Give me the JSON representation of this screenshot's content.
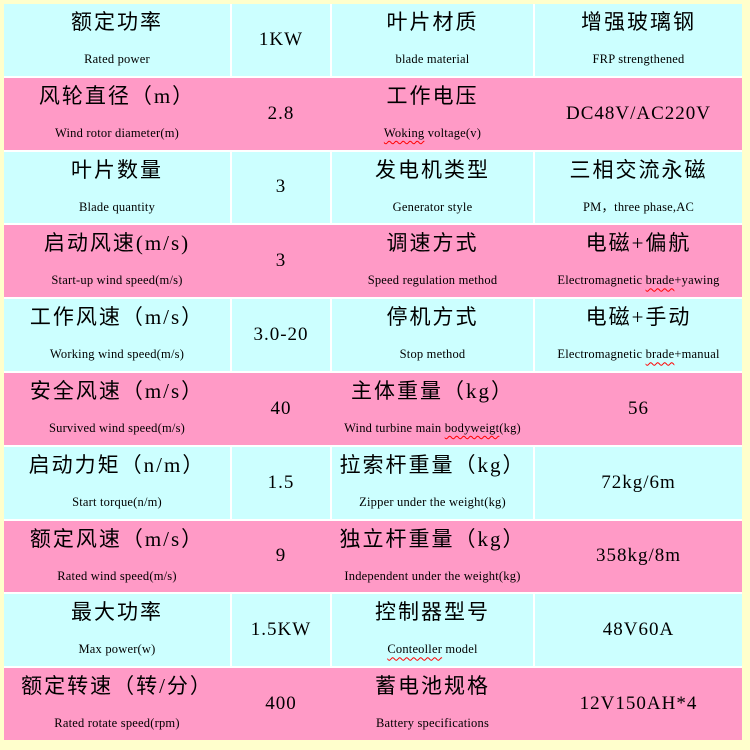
{
  "table": {
    "colors": {
      "frame": "#FFFFCC",
      "cyan": "#CCFFFF",
      "pink": "#FF9AC6",
      "divider": "#FFFFFF",
      "text": "#000000",
      "squiggle": "#FF0000"
    },
    "misspelled_words": [
      "Woking",
      "brade",
      "bodyweigt",
      "Conteoller"
    ],
    "rows": [
      {
        "cells": [
          {
            "type": "label",
            "zh": "额定功率",
            "en": "Rated power"
          },
          {
            "type": "value",
            "text": "1KW"
          },
          {
            "type": "label",
            "zh": "叶片材质",
            "en": "blade material"
          },
          {
            "type": "label",
            "zh": "增强玻璃钢",
            "en": "FRP strengthened"
          }
        ]
      },
      {
        "cells": [
          {
            "type": "label",
            "zh": "风轮直径（m）",
            "en": "Wind rotor diameter(m)"
          },
          {
            "type": "value",
            "text": "2.8"
          },
          {
            "type": "label",
            "zh": "工作电压",
            "en": "Woking voltage(v)"
          },
          {
            "type": "value",
            "text": "DC48V/AC220V"
          }
        ]
      },
      {
        "cells": [
          {
            "type": "label",
            "zh": "叶片数量",
            "en": "Blade quantity"
          },
          {
            "type": "value",
            "text": "3"
          },
          {
            "type": "label",
            "zh": "发电机类型",
            "en": "Generator style"
          },
          {
            "type": "label",
            "zh": "三相交流永磁",
            "en": "PM，three phase,AC"
          }
        ]
      },
      {
        "cells": [
          {
            "type": "label",
            "zh": "启动风速(m/s)",
            "en": "Start-up wind speed(m/s)"
          },
          {
            "type": "value",
            "text": "3"
          },
          {
            "type": "label",
            "zh": "调速方式",
            "en": "Speed regulation method"
          },
          {
            "type": "label",
            "zh": "电磁+偏航",
            "en": "Electromagnetic brade+yawing"
          }
        ]
      },
      {
        "cells": [
          {
            "type": "label",
            "zh": "工作风速（m/s）",
            "en": "Working wind speed(m/s)"
          },
          {
            "type": "value",
            "text": "3.0-20"
          },
          {
            "type": "label",
            "zh": "停机方式",
            "en": "Stop method"
          },
          {
            "type": "label",
            "zh": "电磁+手动",
            "en": "Electromagnetic brade+manual"
          }
        ]
      },
      {
        "cells": [
          {
            "type": "label",
            "zh": "安全风速（m/s）",
            "en": "Survived wind speed(m/s)"
          },
          {
            "type": "value",
            "text": "40"
          },
          {
            "type": "label",
            "zh": "主体重量（kg）",
            "en": "Wind turbine main bodyweigt(kg)"
          },
          {
            "type": "value",
            "text": "56"
          }
        ]
      },
      {
        "cells": [
          {
            "type": "label",
            "zh": "启动力矩（n/m）",
            "en": "Start torque(n/m)"
          },
          {
            "type": "value",
            "text": "1.5"
          },
          {
            "type": "label",
            "zh": "拉索杆重量（kg）",
            "en": "Zipper under the weight(kg)"
          },
          {
            "type": "value",
            "text": "72kg/6m"
          }
        ]
      },
      {
        "cells": [
          {
            "type": "label",
            "zh": "额定风速（m/s）",
            "en": "Rated wind speed(m/s)"
          },
          {
            "type": "value",
            "text": "9"
          },
          {
            "type": "label",
            "zh": "独立杆重量（kg）",
            "en": "Independent under the weight(kg)"
          },
          {
            "type": "value",
            "text": "358kg/8m"
          }
        ]
      },
      {
        "cells": [
          {
            "type": "label",
            "zh": "最大功率",
            "en": "Max power(w)"
          },
          {
            "type": "value",
            "text": "1.5KW"
          },
          {
            "type": "label",
            "zh": "控制器型号",
            "en": "Conteoller model"
          },
          {
            "type": "value",
            "text": "48V60A"
          }
        ]
      },
      {
        "cells": [
          {
            "type": "label",
            "zh": "额定转速（转/分）",
            "en": "Rated rotate speed(rpm)"
          },
          {
            "type": "value",
            "text": "400"
          },
          {
            "type": "label",
            "zh": "蓄电池规格",
            "en": "Battery specifications"
          },
          {
            "type": "value",
            "text": "12V150AH*4"
          }
        ]
      }
    ]
  }
}
